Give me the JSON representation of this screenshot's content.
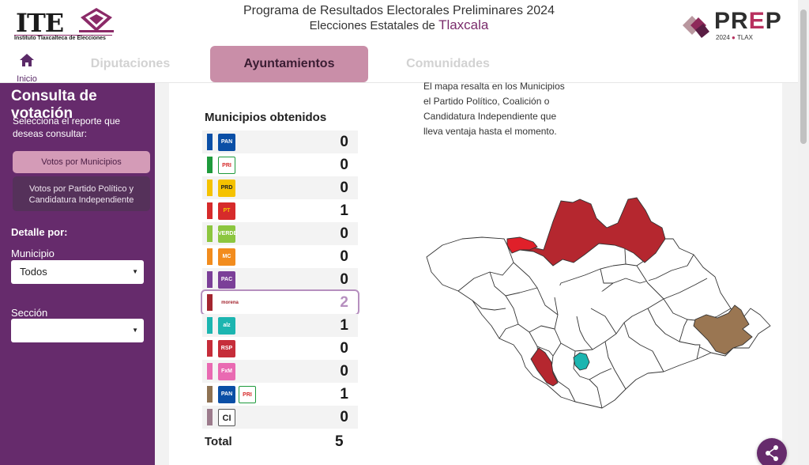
{
  "header": {
    "ite_letters": "ITE",
    "ite_name": "Instituto Tlaxcalteca de Elecciones",
    "title": "Programa de Resultados Electorales Preliminares 2024",
    "subtitle_prefix": "Elecciones Estatales de ",
    "state": "Tlaxcala",
    "prep_word_pre": "PR",
    "prep_word_e": "E",
    "prep_word_post": "P",
    "prep_year": "2024",
    "prep_state": "TLAX"
  },
  "nav": {
    "home_label": "Inicio",
    "tabs": [
      {
        "label": "Diputaciones",
        "active": false
      },
      {
        "label": "Ayuntamientos",
        "active": true
      },
      {
        "label": "Comunidades",
        "active": false
      }
    ]
  },
  "sidebar": {
    "title": "Consulta de votación",
    "description": "Selecciona el reporte que deseas consultar:",
    "report_buttons": [
      {
        "label": "Votos por Municipios",
        "active": true
      },
      {
        "label": "Votos por Partido Político y Candidatura Independiente",
        "active": false
      }
    ],
    "detail_label": "Detalle por:",
    "municipio_label": "Municipio",
    "municipio_value": "Todos",
    "seccion_label": "Sección",
    "seccion_value": ""
  },
  "results": {
    "heading": "Municipios obtenidos",
    "rows": [
      {
        "logos": [
          "PAN"
        ],
        "color": "#0a4fa6",
        "count": "0"
      },
      {
        "logos": [
          "PRI"
        ],
        "color": "#1e9a3c",
        "count": "0"
      },
      {
        "logos": [
          "PRD"
        ],
        "color": "#f5c200",
        "count": "0"
      },
      {
        "logos": [
          "PT"
        ],
        "color": "#d62b2b",
        "count": "1"
      },
      {
        "logos": [
          "VERDE"
        ],
        "color": "#8cc63f",
        "count": "0"
      },
      {
        "logos": [
          "MC"
        ],
        "color": "#f28c1e",
        "count": "0"
      },
      {
        "logos": [
          "PAC"
        ],
        "color": "#7b3f98",
        "count": "0"
      },
      {
        "logos": [
          "morena"
        ],
        "color": "#a3252f",
        "count": "2",
        "highlight": true
      },
      {
        "logos": [
          "alianza"
        ],
        "color": "#1cb5b0",
        "count": "1"
      },
      {
        "logos": [
          "RSP"
        ],
        "color": "#c62d3a",
        "count": "0"
      },
      {
        "logos": [
          "FxM"
        ],
        "color": "#e96ab2",
        "count": "0"
      },
      {
        "logos": [
          "PAN",
          "PRI"
        ],
        "color": "#8e7253",
        "count": "1"
      },
      {
        "logos": [
          "CI"
        ],
        "color": "#9c7b8c",
        "count": "0"
      }
    ],
    "total_label": "Total",
    "total_value": "5"
  },
  "map": {
    "note": "El mapa resalta en los Municipios el Partido Político, Coalición o Candidatura Independiente que lleva ventaja hasta el momento.",
    "colors": {
      "morena": "#b5272f",
      "pt": "#e0202a",
      "alianza": "#1cb5b0",
      "coalicion": "#9a7652"
    }
  },
  "icons": {
    "home": "home-icon",
    "share": "share-icon",
    "caret": "caret-down-icon"
  }
}
